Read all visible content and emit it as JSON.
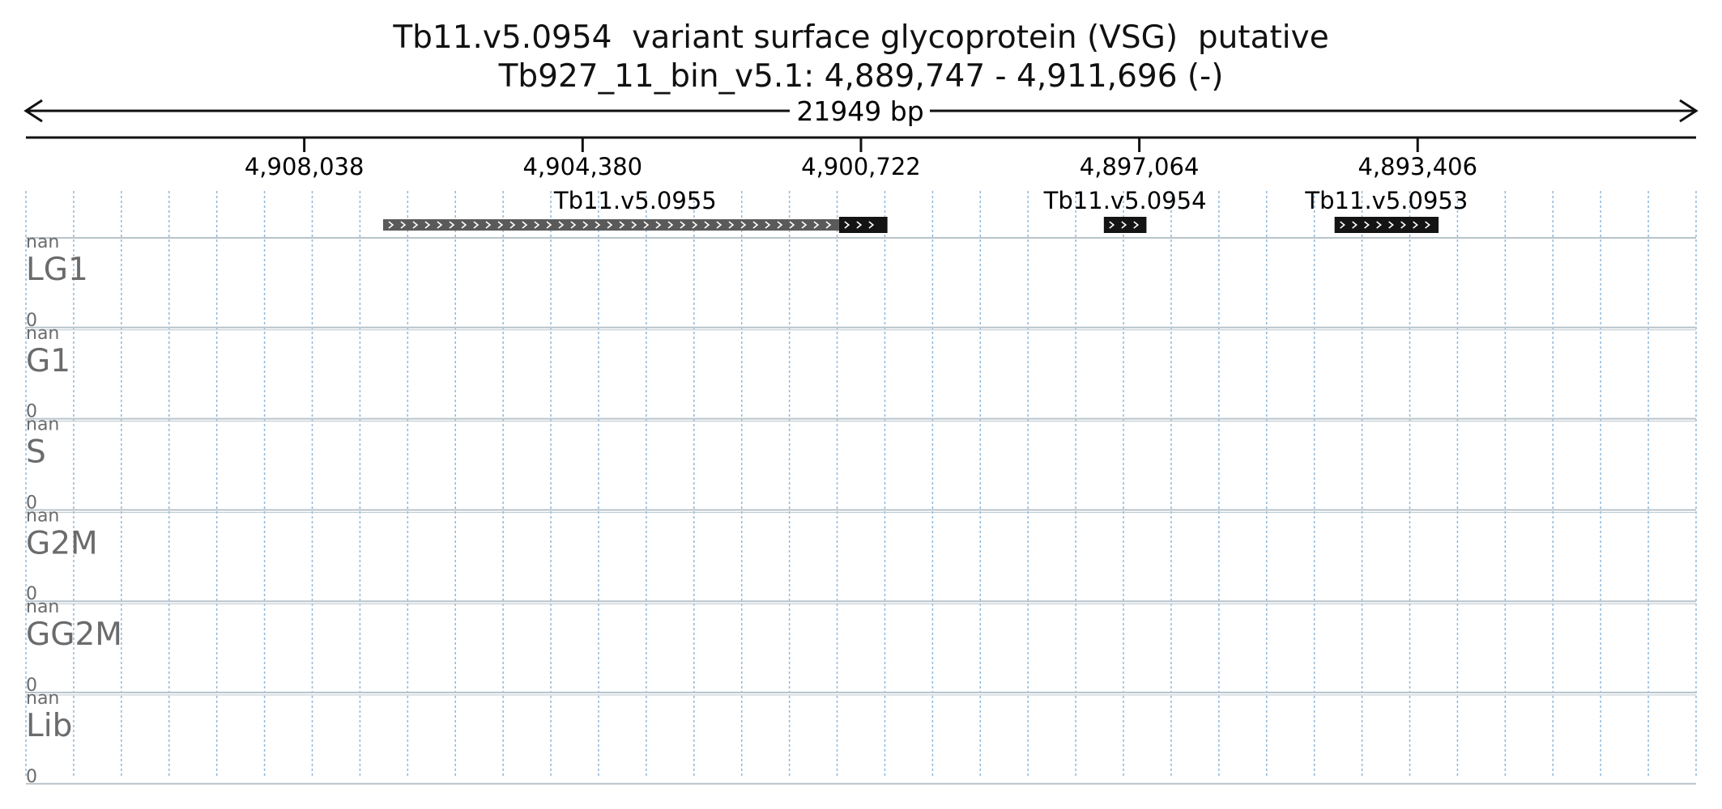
{
  "title": "Tb11.v5.0954  variant surface glycoprotein (VSG)  putative",
  "location": "Tb927_11_bin_v5.1: 4,889,747 - 4,911,696 (-)",
  "span_label": "21949 bp",
  "region": {
    "start": 4889747,
    "end": 4911696,
    "strand": "-"
  },
  "ticks": [
    {
      "pos": 4908038,
      "label": "4,908,038"
    },
    {
      "pos": 4904380,
      "label": "4,904,380"
    },
    {
      "pos": 4900722,
      "label": "4,900,722"
    },
    {
      "pos": 4897064,
      "label": "4,897,064"
    },
    {
      "pos": 4893406,
      "label": "4,893,406"
    }
  ],
  "genes": [
    {
      "name": "Tb11.v5.0955",
      "start": 4900374,
      "end": 4907002,
      "cds_start": 4900374,
      "cds_end": 4901010,
      "utr_start": 4901010,
      "utr_end": 4907002
    },
    {
      "name": "Tb11.v5.0954",
      "start": 4896970,
      "end": 4897530,
      "cds_start": 4896970,
      "cds_end": 4897530
    },
    {
      "name": "Tb11.v5.0953",
      "start": 4893131,
      "end": 4894498,
      "cds_start": 4893131,
      "cds_end": 4894498
    }
  ],
  "tracks": [
    {
      "name": "LG1",
      "max": "nan",
      "min": "0"
    },
    {
      "name": "G1",
      "max": "nan",
      "min": "0"
    },
    {
      "name": "S",
      "max": "nan",
      "min": "0"
    },
    {
      "name": "G2M",
      "max": "nan",
      "min": "0"
    },
    {
      "name": "GG2M",
      "max": "nan",
      "min": "0"
    },
    {
      "name": "Lib",
      "max": "nan",
      "min": "0"
    }
  ],
  "colors": {
    "gene_cds": "#141414",
    "gene_utr": "#5a5a5a",
    "grid": "#8fb8dc",
    "track_separator": "#b8c4cc",
    "track_text": "#6b6b6b"
  }
}
